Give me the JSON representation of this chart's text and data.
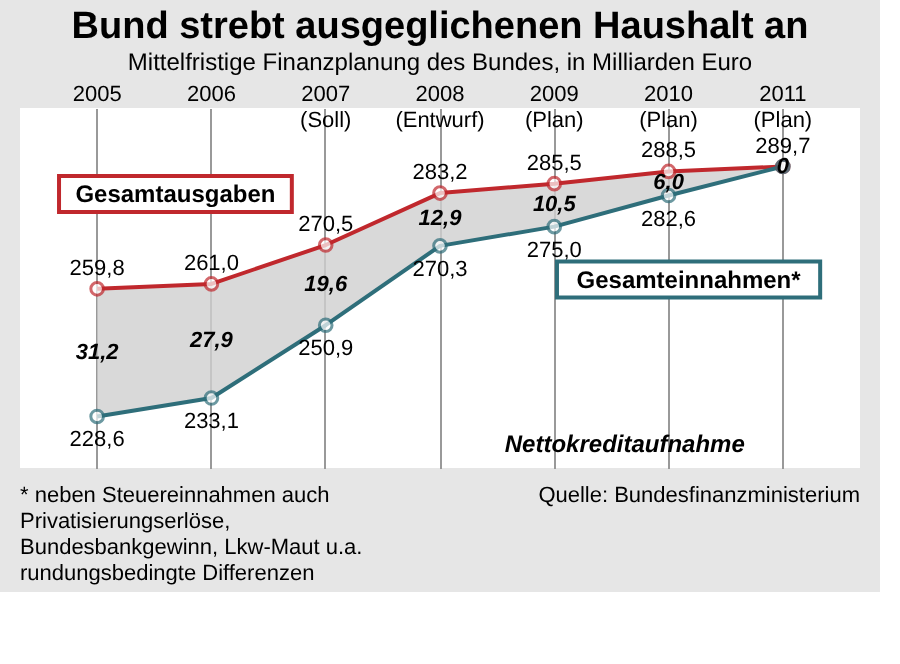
{
  "chart_data": {
    "type": "line",
    "title": "Bund strebt ausgeglichenen Haushalt an",
    "subtitle": "Mittelfristige Finanzplanung des Bundes, in Milliarden Euro",
    "categories": [
      "2005",
      "2006",
      "2007 (Soll)",
      "2008 (Entwurf)",
      "2009 (Plan)",
      "2010 (Plan)",
      "2011 (Plan)"
    ],
    "series": [
      {
        "name": "Gesamtausgaben",
        "color": "#c0282d",
        "values": [
          259.8,
          261.0,
          270.5,
          283.2,
          285.5,
          288.5,
          289.7
        ],
        "value_labels": [
          "259,8",
          "261,0",
          "270,5",
          "283,2",
          "285,5",
          "288,5",
          "289,7"
        ]
      },
      {
        "name": "Gesamteinnahmen*",
        "color": "#2e6e7a",
        "values": [
          228.6,
          233.1,
          250.9,
          270.3,
          275.0,
          282.6,
          289.7
        ],
        "value_labels": [
          "228,6",
          "233,1",
          "250,9",
          "270,3",
          "275,0",
          "282,6",
          null
        ],
        "lower": [
          228.6,
          233.1,
          250.9,
          270.3,
          275.0,
          282.6,
          289.7
        ],
        "upper": [
          259.8,
          261.0,
          270.5,
          283.2,
          285.5,
          288.5,
          289.7
        ]
      }
    ],
    "ylim": [
      216,
      304
    ],
    "grid": "x",
    "legend": false,
    "tick_labels": "x",
    "marker": "circle",
    "line_style": "solid",
    "annotations": [
      "Nettokreditaufnahme",
      "31,2",
      "27,9",
      "19,6",
      "12,9",
      "10,5",
      "6,0",
      "0",
      "Quelle: Bundesfinanzministerium",
      "* neben Steuereinnahmen auch",
      "Privatisierungserlöse,",
      "Bundesbankgewinn, Lkw-Maut u.a.",
      "rundungsbedingte Differenzen"
    ]
  }
}
